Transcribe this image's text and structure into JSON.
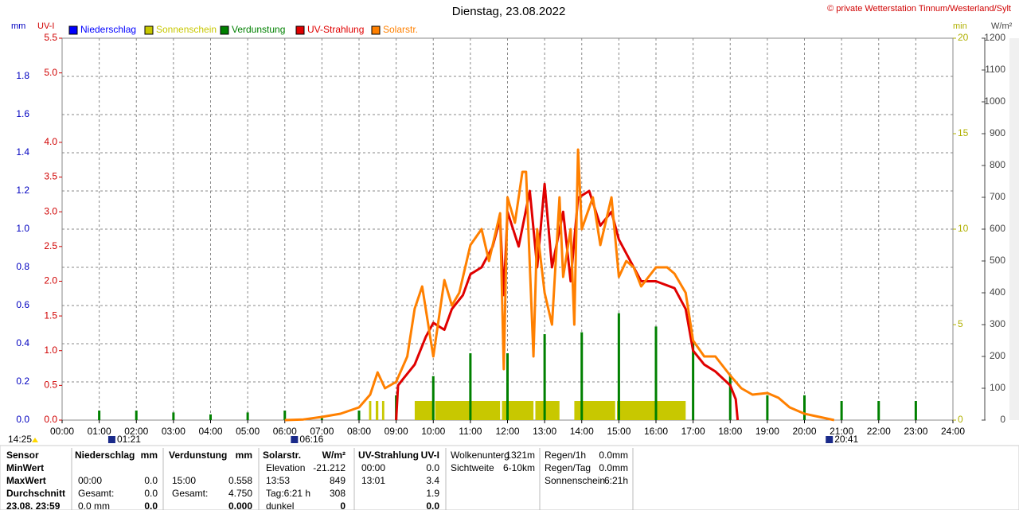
{
  "chart_data": {
    "type": "line",
    "title": "Dienstag, 23.08.2022",
    "copyright": "© private Wetterstation Tinnum/Westerland/Sylt",
    "y_label": "mm",
    "y2_label": "UV-I",
    "y3_label": "min",
    "y4_label": "W/m²",
    "grid": true,
    "xlim": [
      0,
      24
    ],
    "xticks": [
      {
        "value": 0,
        "label": "00:00"
      },
      {
        "value": 1,
        "label": "01:00"
      },
      {
        "value": 2,
        "label": "02:00"
      },
      {
        "value": 3,
        "label": "03:00"
      },
      {
        "value": 4,
        "label": "04:00"
      },
      {
        "value": 5,
        "label": "05:00"
      },
      {
        "value": 6,
        "label": "06:00"
      },
      {
        "value": 7,
        "label": "07:00"
      },
      {
        "value": 8,
        "label": "08:00"
      },
      {
        "value": 9,
        "label": "09:00"
      },
      {
        "value": 10,
        "label": "10:00"
      },
      {
        "value": 11,
        "label": "11:00"
      },
      {
        "value": 12,
        "label": "12:00"
      },
      {
        "value": 13,
        "label": "13:00"
      },
      {
        "value": 14,
        "label": "14:00"
      },
      {
        "value": 15,
        "label": "15:00"
      },
      {
        "value": 16,
        "label": "16:00"
      },
      {
        "value": 17,
        "label": "17:00"
      },
      {
        "value": 18,
        "label": "18:00"
      },
      {
        "value": 19,
        "label": "19:00"
      },
      {
        "value": 20,
        "label": "20:00"
      },
      {
        "value": 21,
        "label": "21:00"
      },
      {
        "value": 22,
        "label": "22:00"
      },
      {
        "value": 23,
        "label": "23:00"
      },
      {
        "value": 24,
        "label": "24:00"
      }
    ],
    "ylim": [
      0,
      2
    ],
    "yticks": [
      {
        "value": 0,
        "label": "0.0"
      },
      0.2,
      0.4,
      0.6,
      0.8,
      {
        "value": 1,
        "label": "1.0"
      },
      1.2,
      1.4,
      1.6,
      1.8
    ],
    "y2lim": [
      0,
      5.5
    ],
    "y2ticks": [
      {
        "value": 0,
        "label": "0.0"
      },
      0.5,
      {
        "value": 1,
        "label": "1.0"
      },
      1.5,
      {
        "value": 2,
        "label": "2.0"
      },
      2.5,
      {
        "value": 3,
        "label": "3.0"
      },
      3.5,
      {
        "value": 4,
        "label": "4.0"
      },
      {
        "value": 5,
        "label": "5.0"
      },
      5.5
    ],
    "y3lim": [
      0,
      20
    ],
    "y3ticks": [
      0,
      5,
      10,
      15,
      20
    ],
    "y4lim": [
      0,
      1200
    ],
    "y4ticks": [
      0,
      100,
      200,
      300,
      400,
      500,
      600,
      700,
      800,
      900,
      1000,
      1100,
      1200
    ],
    "series": [
      {
        "name": "Niederschlag",
        "color": "#0000ff",
        "axis": "y"
      },
      {
        "name": "Sonnenschein",
        "color": "#c8c800",
        "axis": "y3",
        "kind": "span",
        "x_start": [
          8.27,
          8.45,
          8.62,
          9.5,
          10.05,
          11.85,
          12.75,
          13.8,
          14.95
        ],
        "x_end": [
          8.33,
          8.52,
          8.68,
          10.0,
          11.8,
          12.7,
          13.4,
          14.9,
          16.8
        ],
        "values": [
          1,
          1,
          1,
          1,
          1,
          1,
          1,
          1,
          1
        ]
      },
      {
        "name": "Verdunstung",
        "color": "#008000",
        "axis": "y",
        "kind": "bar",
        "x": [
          1,
          2,
          3,
          4,
          5,
          6,
          7,
          8,
          9,
          10,
          11,
          12,
          13,
          14,
          15,
          16,
          17,
          18,
          19,
          20,
          21,
          22,
          23
        ],
        "values": [
          0.05,
          0.05,
          0.04,
          0.03,
          0.04,
          0.05,
          0.01,
          0.05,
          0.13,
          0.23,
          0.35,
          0.35,
          0.45,
          0.46,
          0.56,
          0.49,
          0.41,
          0.24,
          0.13,
          0.13,
          0.1,
          0.1,
          0.1
        ]
      },
      {
        "name": "UV-Strahlung",
        "color": "#e00000",
        "axis": "y2",
        "kind": "line",
        "x": [
          9.0,
          9.05,
          9.2,
          9.5,
          9.8,
          10.0,
          10.3,
          10.5,
          10.8,
          11.0,
          11.3,
          11.6,
          11.8,
          11.9,
          12.0,
          12.3,
          12.6,
          12.8,
          13.0,
          13.2,
          13.5,
          13.7,
          13.9,
          14.2,
          14.5,
          14.8,
          15.0,
          15.3,
          15.6,
          16.0,
          16.5,
          16.8,
          17.0,
          17.3,
          17.6,
          18.0,
          18.15,
          18.2
        ],
        "values": [
          0,
          0.5,
          0.6,
          0.8,
          1.2,
          1.4,
          1.3,
          1.6,
          1.8,
          2.1,
          2.2,
          2.5,
          2.9,
          1.8,
          3.0,
          2.5,
          3.3,
          2.2,
          3.4,
          2.2,
          3.0,
          2.0,
          3.2,
          3.3,
          2.8,
          3.0,
          2.6,
          2.3,
          2.0,
          2.0,
          1.9,
          1.6,
          1.0,
          0.8,
          0.7,
          0.5,
          0.3,
          0
        ]
      },
      {
        "name": "Solarstr.",
        "color": "#ff8000",
        "axis": "y4",
        "kind": "line",
        "x": [
          6.0,
          6.5,
          7.0,
          7.5,
          8.0,
          8.3,
          8.5,
          8.7,
          9.0,
          9.3,
          9.5,
          9.7,
          10.0,
          10.3,
          10.5,
          10.7,
          11.0,
          11.3,
          11.5,
          11.8,
          11.9,
          12.0,
          12.2,
          12.4,
          12.5,
          12.7,
          12.8,
          13.0,
          13.2,
          13.4,
          13.5,
          13.7,
          13.8,
          13.9,
          14.0,
          14.3,
          14.5,
          14.8,
          15.0,
          15.2,
          15.4,
          15.6,
          16.0,
          16.3,
          16.5,
          16.8,
          17.0,
          17.3,
          17.6,
          18.0,
          18.3,
          18.6,
          19.0,
          19.3,
          19.6,
          20.0,
          20.4,
          20.8
        ],
        "values": [
          0,
          2,
          10,
          20,
          40,
          80,
          150,
          100,
          120,
          200,
          350,
          420,
          200,
          440,
          360,
          400,
          550,
          600,
          500,
          650,
          160,
          700,
          620,
          780,
          780,
          200,
          600,
          400,
          300,
          700,
          450,
          600,
          300,
          850,
          600,
          700,
          550,
          700,
          450,
          500,
          480,
          420,
          480,
          480,
          460,
          400,
          250,
          200,
          200,
          140,
          100,
          80,
          85,
          70,
          40,
          20,
          10,
          0
        ]
      }
    ],
    "markers": [
      {
        "label": "14:25"
      },
      {
        "label": "01:21",
        "x": 1.35
      },
      {
        "label": "06:16",
        "x": 6.27
      },
      {
        "label": "20:41",
        "x": 20.68
      }
    ],
    "stats": {
      "row_labels": [
        "Sensor",
        "MinWert",
        "MaxWert",
        "Durchschnitt",
        "23.08. 23:59"
      ],
      "columns": [
        {
          "name": "Niederschlag",
          "unit": "mm",
          "cells": [
            [
              null,
              null
            ],
            [
              "00:00",
              "0.0"
            ],
            [
              "Gesamt:",
              "0.0"
            ],
            [
              "0.0 mm",
              "0.0"
            ]
          ]
        },
        {
          "name": "Verdunstung",
          "unit": "mm",
          "cells": [
            [
              null,
              null
            ],
            [
              "15:00",
              "0.558"
            ],
            [
              "Gesamt:",
              "4.750"
            ],
            [
              null,
              "0.000"
            ]
          ]
        },
        {
          "name": "Solarstr.",
          "unit": "W/m²",
          "cells": [
            [
              "Elevation",
              "-21.212"
            ],
            [
              "13:53",
              "849"
            ],
            [
              "Tag:6:21 h",
              "308"
            ],
            [
              "dunkel",
              "0"
            ]
          ]
        },
        {
          "name": "UV-Strahlung",
          "unit": "UV-I",
          "cells": [
            [
              "00:00",
              "0.0"
            ],
            [
              "13:01",
              "3.4"
            ],
            [
              null,
              "1.9"
            ],
            [
              null,
              "0.0"
            ]
          ]
        }
      ],
      "info1": [
        [
          "Wolkenunterg",
          "1321m"
        ],
        [
          "Sichtweite",
          "6-10km"
        ]
      ],
      "info2": [
        [
          "Regen/1h",
          "0.0mm"
        ],
        [
          "Regen/Tag",
          "0.0mm"
        ],
        [
          "Sonnenschein",
          "6:21h"
        ]
      ]
    }
  }
}
